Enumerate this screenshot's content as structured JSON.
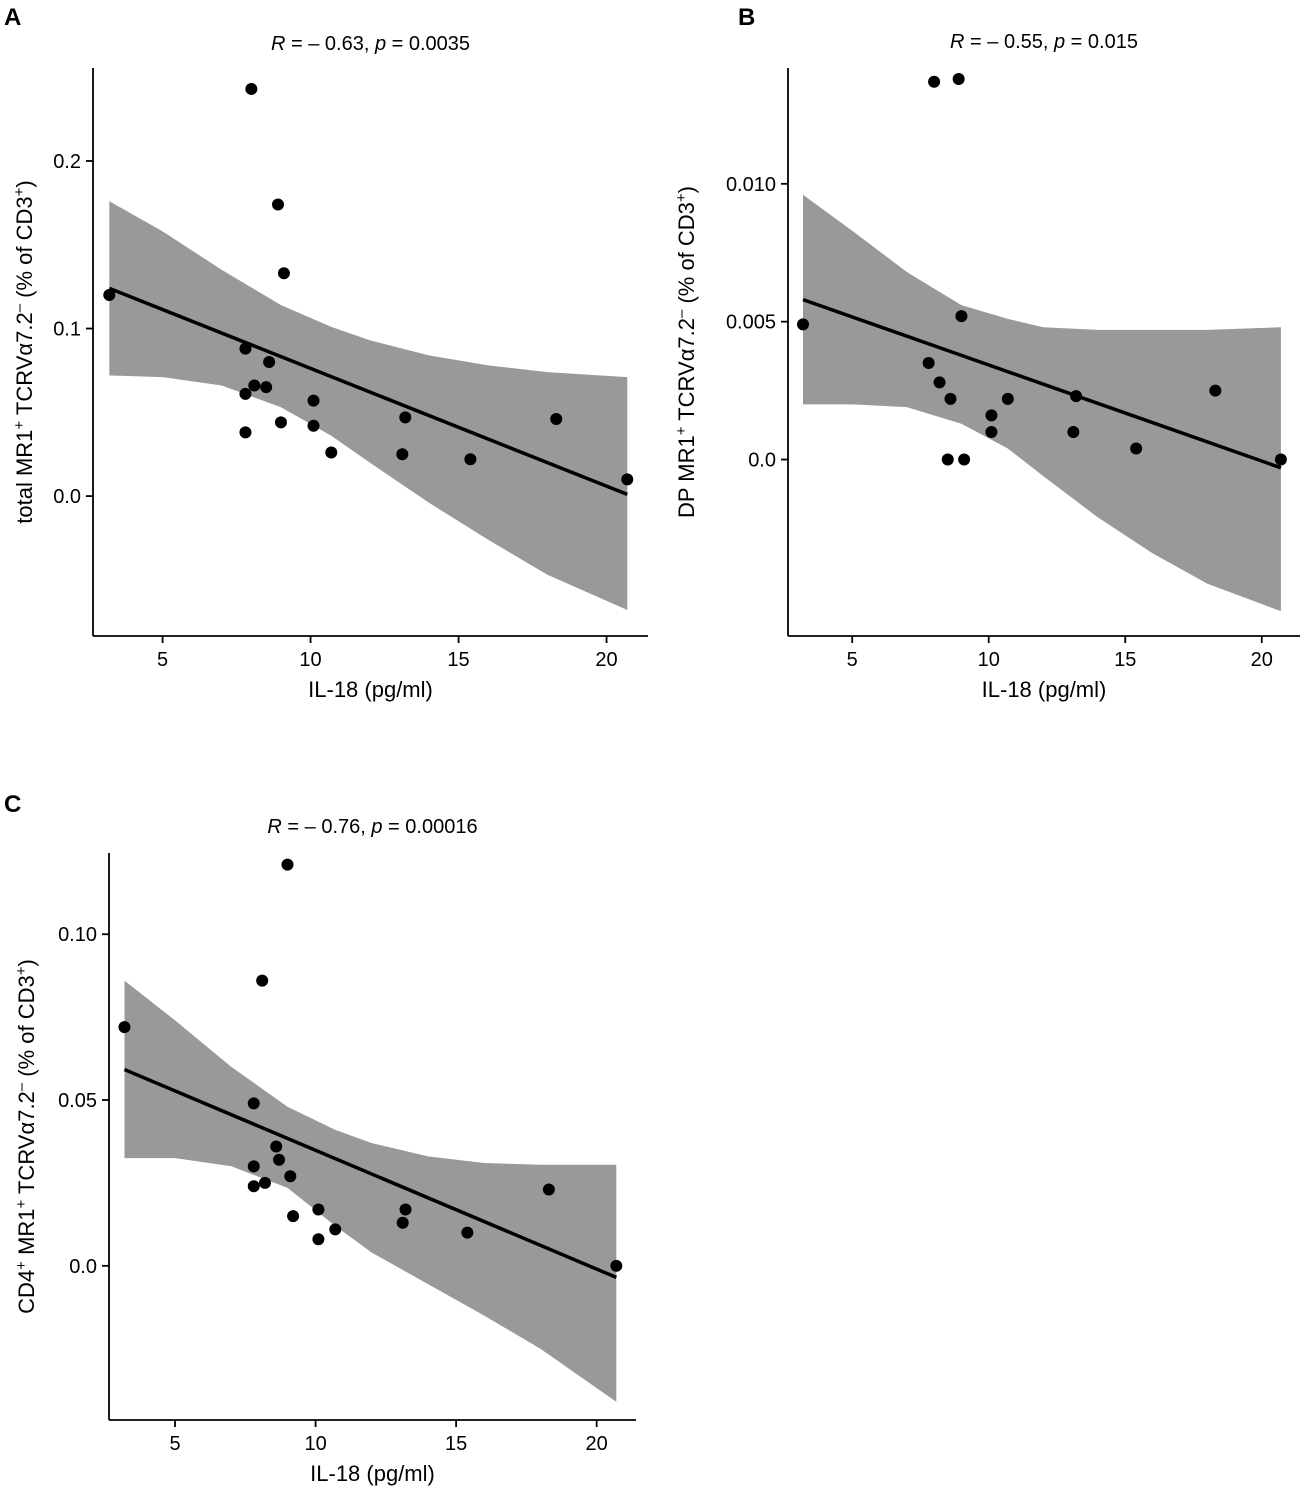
{
  "figure_title": "",
  "chart_data": [
    {
      "panel": "A",
      "type": "scatter",
      "title": "R = – 0.63, p = 0.0035",
      "stat": {
        "r_label": "R",
        "r_value": " = – 0.63, ",
        "p_label": "p",
        "p_value": " = 0.0035"
      },
      "xlabel": "IL-18 (pg/ml)",
      "ylabel_parts": {
        "pre": "total MR1",
        "sup1": "+",
        "mid": " TCRVα7.2",
        "sup2": "–",
        "post": " (% of CD3",
        "sup3": "+",
        "end": ")"
      },
      "xlim": [
        2.65,
        21.4
      ],
      "ylim": [
        -0.0835,
        0.2555
      ],
      "xticks": [
        5,
        10,
        15,
        20
      ],
      "yticks": [
        0.0,
        0.1,
        0.2
      ],
      "ytick_labels": [
        "0.0",
        "0.1",
        "0.2"
      ],
      "grid": false,
      "x": [
        3.2,
        7.8,
        7.8,
        7.8,
        8.0,
        8.1,
        8.5,
        8.6,
        8.9,
        9.0,
        9.1,
        10.1,
        10.1,
        10.7,
        13.1,
        13.2,
        15.4,
        18.3,
        20.7
      ],
      "y": [
        0.12,
        0.088,
        0.061,
        0.038,
        0.243,
        0.066,
        0.065,
        0.08,
        0.174,
        0.044,
        0.133,
        0.057,
        0.042,
        0.026,
        0.025,
        0.047,
        0.022,
        0.046,
        0.01
      ],
      "fit": {
        "x": [
          3.2,
          20.7
        ],
        "y": [
          0.124,
          0.001
        ]
      },
      "ci_band": {
        "x": [
          3.2,
          5.0,
          7.0,
          9.0,
          10.7,
          12.0,
          14.0,
          16.0,
          18.0,
          20.7
        ],
        "lower": [
          0.072,
          0.071,
          0.066,
          0.053,
          0.036,
          0.02,
          -0.004,
          -0.026,
          -0.047,
          -0.068
        ],
        "upper": [
          0.176,
          0.158,
          0.135,
          0.114,
          0.101,
          0.093,
          0.084,
          0.078,
          0.074,
          0.071
        ]
      }
    },
    {
      "panel": "B",
      "type": "scatter",
      "title": "R = – 0.55, p = 0.015",
      "stat": {
        "r_label": "R",
        "r_value": " = – 0.55, ",
        "p_label": "p",
        "p_value": " = 0.015"
      },
      "xlabel": "IL-18 (pg/ml)",
      "ylabel_parts": {
        "pre": "DP MR1",
        "sup1": "+",
        "mid": " TCRVα7.2",
        "sup2": "–",
        "post": " (% of CD3",
        "sup3": "+",
        "end": ")"
      },
      "xlim": [
        2.65,
        21.4
      ],
      "ylim": [
        -0.0064,
        0.0142
      ],
      "xticks": [
        5,
        10,
        15,
        20
      ],
      "yticks": [
        0.0,
        0.005,
        0.01
      ],
      "ytick_labels": [
        "0.0",
        "0.005",
        "0.010"
      ],
      "grid": false,
      "x": [
        3.2,
        7.8,
        8.0,
        8.2,
        8.5,
        8.6,
        8.9,
        9.0,
        9.1,
        10.1,
        10.1,
        10.7,
        13.1,
        13.2,
        15.4,
        18.3,
        20.7
      ],
      "y": [
        0.0049,
        0.0035,
        0.0137,
        0.0028,
        0.0,
        0.0022,
        0.0138,
        0.0052,
        0.0,
        0.0016,
        0.001,
        0.0022,
        0.001,
        0.0023,
        0.0004,
        0.0025,
        0.0
      ],
      "fit": {
        "x": [
          3.2,
          20.7
        ],
        "y": [
          0.0058,
          -0.0003
        ]
      },
      "ci_band": {
        "x": [
          3.2,
          5.0,
          7.0,
          9.0,
          10.7,
          12.0,
          14.0,
          16.0,
          18.0,
          20.7
        ],
        "lower": [
          0.002,
          0.002,
          0.0019,
          0.0013,
          0.0004,
          -0.0006,
          -0.0021,
          -0.0034,
          -0.0045,
          -0.0055
        ],
        "upper": [
          0.0096,
          0.0083,
          0.0068,
          0.0056,
          0.0051,
          0.0048,
          0.0047,
          0.0047,
          0.0047,
          0.0048
        ]
      }
    },
    {
      "panel": "C",
      "type": "scatter",
      "title": "R = – 0.76, p = 0.00016",
      "stat": {
        "r_label": "R",
        "r_value": " = – 0.76, ",
        "p_label": "p",
        "p_value": " = 0.00016"
      },
      "xlabel": "IL-18 (pg/ml)",
      "ylabel_parts": {
        "pre": "CD4",
        "sup1": "+",
        "mid": " MR1",
        "sup2": "+",
        "post": " TCRVα7.2",
        "sup3": "–",
        "end": " (% of CD3",
        "sup4": "+",
        "end2": ")"
      },
      "xlim": [
        2.65,
        21.4
      ],
      "ylim": [
        -0.0465,
        0.1245
      ],
      "xticks": [
        5,
        10,
        15,
        20
      ],
      "yticks": [
        0.0,
        0.05,
        0.1
      ],
      "ytick_labels": [
        "0.0",
        "0.05",
        "0.10"
      ],
      "grid": false,
      "x": [
        3.2,
        7.8,
        7.8,
        7.8,
        8.1,
        8.2,
        8.6,
        8.7,
        9.0,
        9.1,
        9.2,
        10.1,
        10.1,
        10.7,
        13.1,
        13.2,
        15.4,
        18.3,
        20.7
      ],
      "y": [
        0.072,
        0.049,
        0.03,
        0.024,
        0.086,
        0.025,
        0.036,
        0.032,
        0.121,
        0.027,
        0.015,
        0.017,
        0.008,
        0.011,
        0.013,
        0.017,
        0.01,
        0.023,
        0.0
      ],
      "fit": {
        "x": [
          3.2,
          20.7
        ],
        "y": [
          0.0592,
          -0.0035
        ]
      },
      "ci_band": {
        "x": [
          3.2,
          5.0,
          7.0,
          9.0,
          10.7,
          12.0,
          14.0,
          16.0,
          18.0,
          20.7
        ],
        "lower": [
          0.0325,
          0.0325,
          0.03,
          0.0235,
          0.012,
          0.004,
          -0.0055,
          -0.015,
          -0.025,
          -0.041
        ],
        "upper": [
          0.086,
          0.074,
          0.06,
          0.048,
          0.041,
          0.037,
          0.033,
          0.031,
          0.0305,
          0.0305
        ]
      }
    }
  ]
}
